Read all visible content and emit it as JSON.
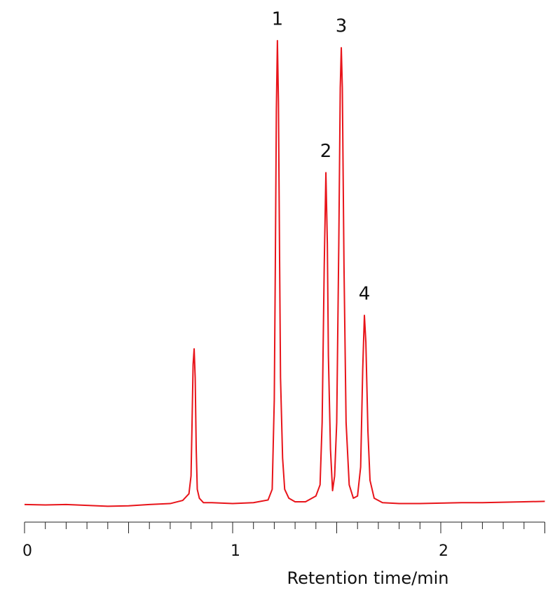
{
  "chart_data": {
    "type": "line",
    "x_label": "Retention time/min",
    "xlim": [
      0,
      2.5
    ],
    "xticks": [
      0,
      1,
      2
    ],
    "xminor_ticks": [
      0,
      0.1,
      0.2,
      0.3,
      0.4,
      0.5,
      0.6,
      0.7,
      0.8,
      0.9,
      1,
      1.1,
      1.2,
      1.3,
      1.4,
      1.5,
      1.6,
      1.7,
      1.8,
      1.9,
      2,
      2.1,
      2.2,
      2.3,
      2.4,
      2.5
    ],
    "xmajor_ticks": [
      0,
      0.5,
      1,
      1.5,
      2,
      2.5
    ],
    "ylim": [
      0,
      110
    ],
    "series": [
      {
        "color": "#e8141a",
        "x": [
          0,
          0.1,
          0.2,
          0.3,
          0.4,
          0.5,
          0.6,
          0.7,
          0.76,
          0.79,
          0.8,
          0.805,
          0.81,
          0.815,
          0.82,
          0.825,
          0.83,
          0.84,
          0.86,
          0.9,
          1.0,
          1.1,
          1.17,
          1.19,
          1.2,
          1.205,
          1.21,
          1.215,
          1.22,
          1.225,
          1.23,
          1.24,
          1.25,
          1.27,
          1.3,
          1.35,
          1.4,
          1.42,
          1.43,
          1.44,
          1.448,
          1.455,
          1.46,
          1.47,
          1.48,
          1.49,
          1.5,
          1.51,
          1.517,
          1.522,
          1.527,
          1.535,
          1.545,
          1.56,
          1.58,
          1.6,
          1.615,
          1.625,
          1.633,
          1.64,
          1.65,
          1.66,
          1.68,
          1.72,
          1.8,
          1.9,
          2.0,
          2.1,
          2.2,
          2.3,
          2.4,
          2.5
        ],
        "values": [
          1.6,
          1.5,
          1.6,
          1.4,
          1.2,
          1.3,
          1.6,
          1.8,
          2.5,
          4,
          8,
          20,
          33,
          36.5,
          30,
          14,
          5,
          3,
          2,
          2,
          1.8,
          2.0,
          2.6,
          5,
          25,
          55,
          90,
          105.6,
          92,
          60,
          30,
          12,
          5,
          3,
          2.2,
          2.2,
          3.5,
          6,
          20,
          55,
          76,
          60,
          35,
          14,
          4.7,
          8,
          20,
          60,
          95,
          104,
          95,
          55,
          20,
          6,
          3,
          3.5,
          10,
          32,
          44,
          38,
          18,
          7,
          3,
          2,
          1.8,
          1.8,
          1.9,
          2.0,
          2.0,
          2.1,
          2.2,
          2.3
        ]
      }
    ],
    "annotations": [
      {
        "text": "1",
        "x": 1.215
      },
      {
        "text": "2",
        "x": 1.448
      },
      {
        "text": "3",
        "x": 1.522
      },
      {
        "text": "4",
        "x": 1.633
      }
    ]
  }
}
